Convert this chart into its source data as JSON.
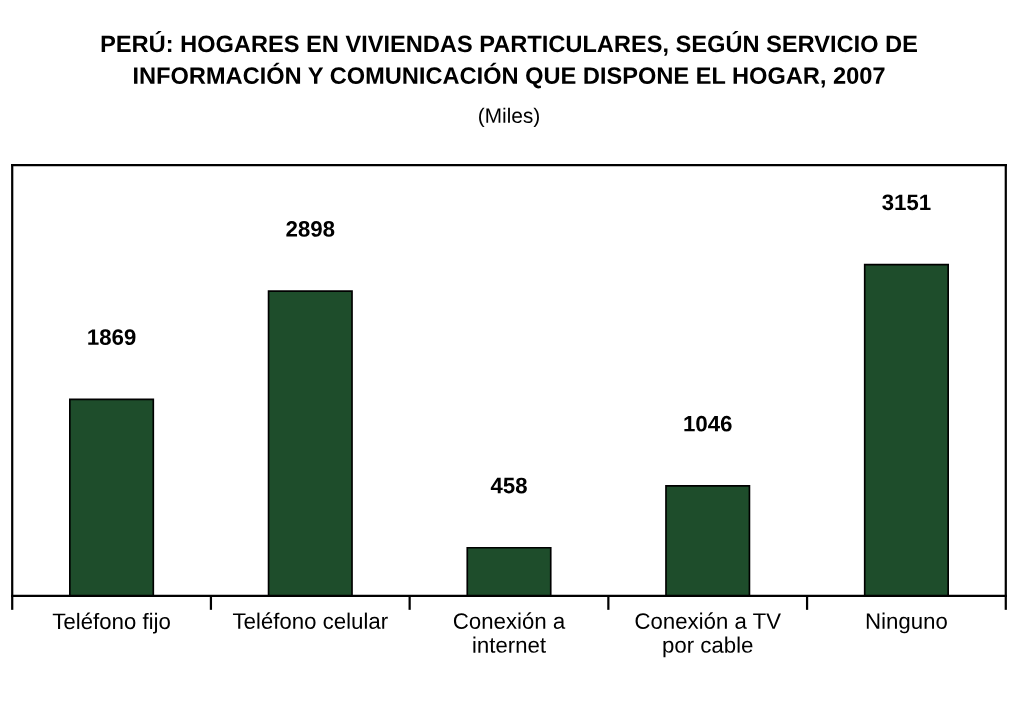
{
  "chart_data": {
    "type": "bar",
    "title": "PERÚ: HOGARES EN VIVIENDAS PARTICULARES, SEGÚN SERVICIO DE\nINFORMACIÓN Y COMUNICACIÓN QUE DISPONE EL HOGAR, 2007",
    "subtitle": "(Miles)",
    "categories": [
      "Teléfono fijo",
      "Teléfono celular",
      "Conexión a\ninternet",
      "Conexión a TV\npor cable",
      "Ninguno"
    ],
    "values": [
      1869,
      2898,
      458,
      1046,
      3151
    ],
    "color": "#1e4d2b",
    "data_labels": true,
    "grid": false,
    "legend": false
  }
}
